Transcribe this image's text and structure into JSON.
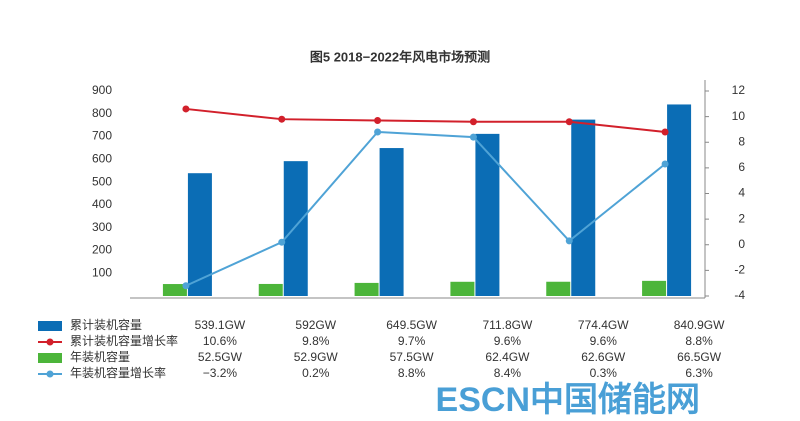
{
  "chart_data": {
    "type": "bar",
    "title": "图5 2018−2022年风电市场预测",
    "categories": [
      null,
      null,
      null,
      null,
      null,
      null
    ],
    "series": [
      {
        "name": "累计装机容量",
        "type": "bar",
        "color": "#0b6db5",
        "values": [
          539.1,
          592,
          649.5,
          711.8,
          774.4,
          840.9
        ],
        "value_labels": [
          "539.1GW",
          "592GW",
          "649.5GW",
          "711.8GW",
          "774.4GW",
          "840.9GW"
        ]
      },
      {
        "name": "累计装机容量增长率",
        "type": "line",
        "axis": "y2",
        "color": "#d2202b",
        "values": [
          10.6,
          9.8,
          9.7,
          9.6,
          9.6,
          8.8
        ],
        "value_labels": [
          "10.6%",
          "9.8%",
          "9.7%",
          "9.6%",
          "9.6%",
          "8.8%"
        ]
      },
      {
        "name": "年装机容量",
        "type": "bar",
        "color": "#4cb53a",
        "values": [
          52.5,
          52.9,
          57.5,
          62.4,
          62.6,
          66.5
        ],
        "value_labels": [
          "52.5GW",
          "52.9GW",
          "57.5GW",
          "62.4GW",
          "62.6GW",
          "66.5GW"
        ]
      },
      {
        "name": "年装机容量增长率",
        "type": "line",
        "axis": "y2",
        "color": "#4fa3d6",
        "values": [
          -3.2,
          0.2,
          8.8,
          8.4,
          0.3,
          6.3
        ],
        "value_labels": [
          "−3.2%",
          "0.2%",
          "8.8%",
          "8.4%",
          "0.3%",
          "6.3%"
        ]
      }
    ],
    "ylim": [
      0,
      900
    ],
    "yticks": [
      100,
      200,
      300,
      400,
      500,
      600,
      700,
      800,
      900
    ],
    "y2lim": [
      -4,
      12
    ],
    "y2ticks": [
      -4,
      -2,
      0,
      2,
      4,
      6,
      8,
      10,
      12
    ],
    "grid": false
  },
  "watermark": "ESCN中国储能网"
}
